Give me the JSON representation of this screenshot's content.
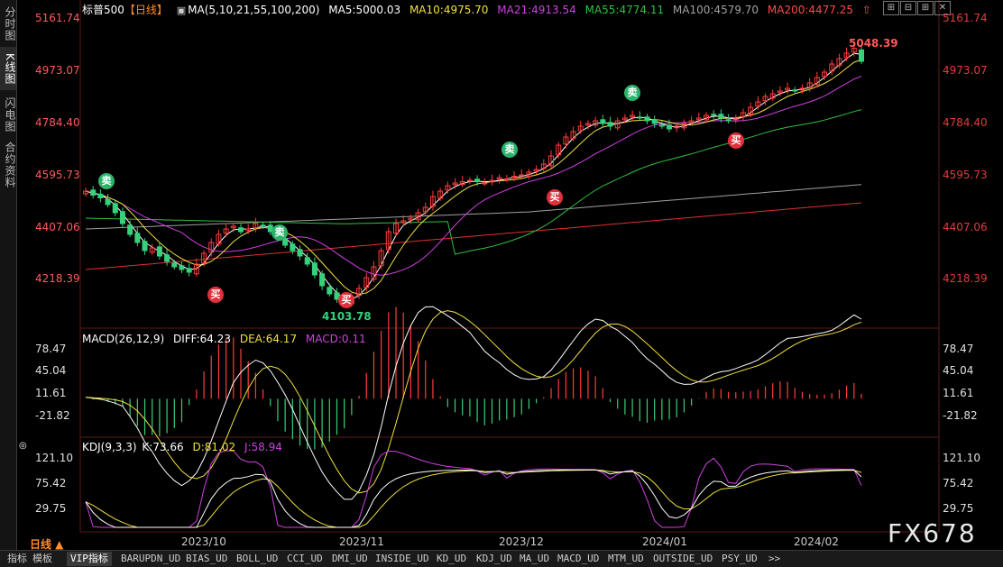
{
  "sidebar": {
    "tabs": [
      {
        "label": "分时图",
        "active": false
      },
      {
        "label": "K线图",
        "active": true
      },
      {
        "label": "闪电图",
        "active": false
      },
      {
        "label": "合约资料",
        "active": false
      }
    ]
  },
  "header": {
    "instrument": "标普500",
    "period": "【日线】",
    "ma_title": "MA(5,10,21,55,100,200)",
    "ma5": "MA5:5000.03",
    "ma10": "MA10:4975.70",
    "ma21": "MA21:4913.54",
    "ma55": "MA55:4774.11",
    "ma100": "MA100:4579.70",
    "ma200": "MA200:4477.25"
  },
  "price_axis": [
    "5161.74",
    "4973.07",
    "4784.40",
    "4595.73",
    "4407.06",
    "4218.39"
  ],
  "price_annotations": {
    "high": "5048.39",
    "low": "4103.78"
  },
  "markers": {
    "sell": "卖",
    "buy": "买"
  },
  "macd": {
    "title": "MACD(26,12,9)",
    "diff": "DIFF:64.23",
    "dea": "DEA:64.17",
    "macd": "MACD:0.11",
    "axis": [
      "78.47",
      "45.04",
      "11.61",
      "-21.82"
    ]
  },
  "kdj": {
    "title": "KDJ(9,3,3)",
    "k": "K:73.66",
    "d": "D:81.02",
    "j": "J:58.94",
    "axis": [
      "121.10",
      "75.42",
      "29.75"
    ]
  },
  "x_axis": [
    "2023/10",
    "2023/11",
    "2023/12",
    "2024/01",
    "2024/02"
  ],
  "period_button": "日线 ▲",
  "bottom_tabs": [
    "指标",
    "模板",
    "VIP指标",
    "BARUPDN_UD",
    "BIAS_UD",
    "BOLL_UD",
    "CCI_UD",
    "DMI_UD",
    "INSIDE_UD",
    "KD_UD",
    "KDJ_UD",
    "MA_UD",
    "MACD_UD",
    "MTM_UD",
    "OUTSIDE_UD",
    "PSY_UD",
    ">>"
  ],
  "bottom_active": "VIP指标",
  "watermark": "FX678",
  "colors": {
    "up": "#ff3c3c",
    "down": "#36d17a",
    "ma5": "#ffffff",
    "ma10": "#f0e040",
    "ma21": "#d040e0",
    "ma55": "#30c040",
    "ma100": "#a0a0a0",
    "ma200": "#e03030"
  },
  "chart_data": {
    "type": "candlestick",
    "price_range": [
      4103.78,
      5048.39
    ],
    "series_close": [
      4520,
      4505,
      4495,
      4470,
      4440,
      4400,
      4360,
      4330,
      4300,
      4310,
      4280,
      4260,
      4240,
      4230,
      4220,
      4250,
      4290,
      4330,
      4360,
      4380,
      4390,
      4370,
      4380,
      4400,
      4390,
      4370,
      4350,
      4320,
      4300,
      4280,
      4250,
      4210,
      4170,
      4140,
      4120,
      4110,
      4130,
      4160,
      4200,
      4240,
      4300,
      4370,
      4400,
      4410,
      4420,
      4440,
      4460,
      4500,
      4520,
      4540,
      4550,
      4555,
      4560,
      4555,
      4550,
      4560,
      4570,
      4565,
      4575,
      4580,
      4590,
      4600,
      4620,
      4650,
      4690,
      4720,
      4740,
      4760,
      4770,
      4780,
      4770,
      4760,
      4780,
      4790,
      4800,
      4790,
      4780,
      4770,
      4760,
      4750,
      4760,
      4770,
      4780,
      4790,
      4800,
      4800,
      4790,
      4780,
      4790,
      4810,
      4830,
      4850,
      4870,
      4880,
      4890,
      4900,
      4890,
      4900,
      4920,
      4940,
      4960,
      4990,
      5010,
      5030,
      5048,
      5000
    ],
    "macd_hist_range": [
      -21.82,
      78.47
    ],
    "kdj_range": [
      29.75,
      121.1
    ]
  }
}
